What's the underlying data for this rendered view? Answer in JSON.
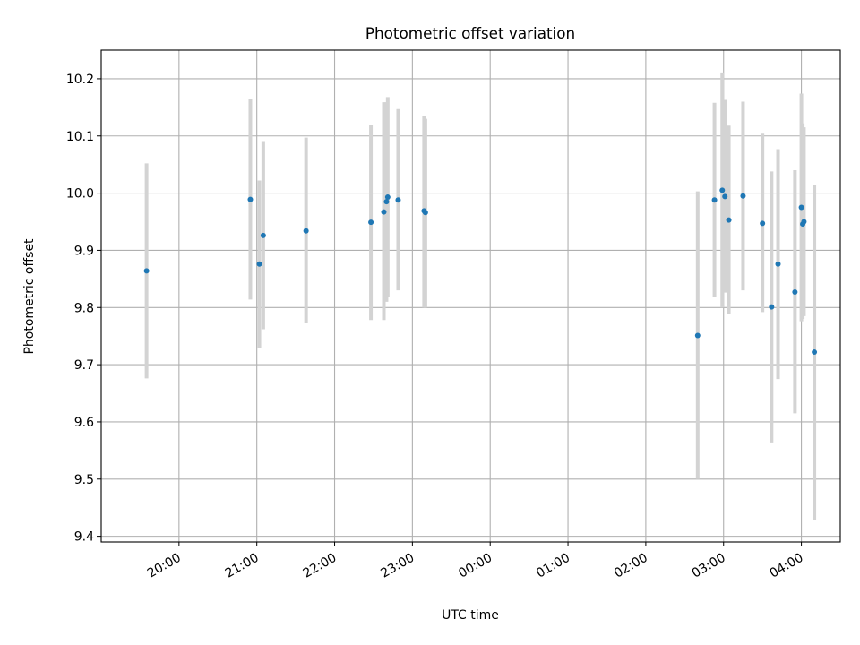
{
  "chart_data": {
    "type": "scatter",
    "title": "Photometric offset variation",
    "xlabel": "UTC time",
    "ylabel": "Photometric offset",
    "x_unit": "UTC time (hours; values past 24 fall on the following day)",
    "xlim": [
      19.0,
      28.5
    ],
    "ylim": [
      9.39,
      10.25
    ],
    "grid": true,
    "x_ticks": [
      {
        "value": 20,
        "label": "20:00"
      },
      {
        "value": 21,
        "label": "21:00"
      },
      {
        "value": 22,
        "label": "22:00"
      },
      {
        "value": 23,
        "label": "23:00"
      },
      {
        "value": 24,
        "label": "00:00"
      },
      {
        "value": 25,
        "label": "01:00"
      },
      {
        "value": 26,
        "label": "02:00"
      },
      {
        "value": 27,
        "label": "03:00"
      },
      {
        "value": 28,
        "label": "04:00"
      }
    ],
    "y_ticks": [
      {
        "value": 9.4,
        "label": "9.4"
      },
      {
        "value": 9.5,
        "label": "9.5"
      },
      {
        "value": 9.6,
        "label": "9.6"
      },
      {
        "value": 9.7,
        "label": "9.7"
      },
      {
        "value": 9.8,
        "label": "9.8"
      },
      {
        "value": 9.9,
        "label": "9.9"
      },
      {
        "value": 10.0,
        "label": "10.0"
      },
      {
        "value": 10.1,
        "label": "10.1"
      },
      {
        "value": 10.2,
        "label": "10.2"
      }
    ],
    "marker_color": "#1f77b4",
    "errorbar_color": "#d3d3d3",
    "points": [
      {
        "x": 19.583,
        "y": 9.864,
        "yerr_low": 9.676,
        "yerr_high": 10.052
      },
      {
        "x": 20.917,
        "y": 9.989,
        "yerr_low": 9.814,
        "yerr_high": 10.164
      },
      {
        "x": 21.033,
        "y": 9.876,
        "yerr_low": 9.73,
        "yerr_high": 10.022
      },
      {
        "x": 21.083,
        "y": 9.926,
        "yerr_low": 9.762,
        "yerr_high": 10.091
      },
      {
        "x": 21.633,
        "y": 9.934,
        "yerr_low": 9.773,
        "yerr_high": 10.097
      },
      {
        "x": 22.467,
        "y": 9.949,
        "yerr_low": 9.778,
        "yerr_high": 10.119
      },
      {
        "x": 22.633,
        "y": 9.967,
        "yerr_low": 9.778,
        "yerr_high": 10.159
      },
      {
        "x": 22.667,
        "y": 9.985,
        "yerr_low": 9.81,
        "yerr_high": 10.159
      },
      {
        "x": 22.683,
        "y": 9.993,
        "yerr_low": 9.818,
        "yerr_high": 10.168
      },
      {
        "x": 22.817,
        "y": 9.988,
        "yerr_low": 9.83,
        "yerr_high": 10.147
      },
      {
        "x": 23.15,
        "y": 9.969,
        "yerr_low": 9.8,
        "yerr_high": 10.135
      },
      {
        "x": 23.167,
        "y": 9.966,
        "yerr_low": 9.8,
        "yerr_high": 10.13
      },
      {
        "x": 26.667,
        "y": 9.751,
        "yerr_low": 9.5,
        "yerr_high": 10.003
      },
      {
        "x": 26.883,
        "y": 9.988,
        "yerr_low": 9.818,
        "yerr_high": 10.158
      },
      {
        "x": 26.983,
        "y": 10.005,
        "yerr_low": 9.8,
        "yerr_high": 10.211
      },
      {
        "x": 27.017,
        "y": 9.994,
        "yerr_low": 9.826,
        "yerr_high": 10.163
      },
      {
        "x": 27.067,
        "y": 9.953,
        "yerr_low": 9.789,
        "yerr_high": 10.118
      },
      {
        "x": 27.25,
        "y": 9.995,
        "yerr_low": 9.83,
        "yerr_high": 10.16
      },
      {
        "x": 27.5,
        "y": 9.947,
        "yerr_low": 9.792,
        "yerr_high": 10.104
      },
      {
        "x": 27.617,
        "y": 9.801,
        "yerr_low": 9.564,
        "yerr_high": 10.038
      },
      {
        "x": 27.7,
        "y": 9.876,
        "yerr_low": 9.675,
        "yerr_high": 10.077
      },
      {
        "x": 27.917,
        "y": 9.827,
        "yerr_low": 9.615,
        "yerr_high": 10.04
      },
      {
        "x": 28.0,
        "y": 9.975,
        "yerr_low": 9.776,
        "yerr_high": 10.174
      },
      {
        "x": 28.017,
        "y": 9.946,
        "yerr_low": 9.78,
        "yerr_high": 10.122
      },
      {
        "x": 28.033,
        "y": 9.95,
        "yerr_low": 9.785,
        "yerr_high": 10.115
      },
      {
        "x": 28.167,
        "y": 9.722,
        "yerr_low": 9.428,
        "yerr_high": 10.015
      }
    ]
  }
}
